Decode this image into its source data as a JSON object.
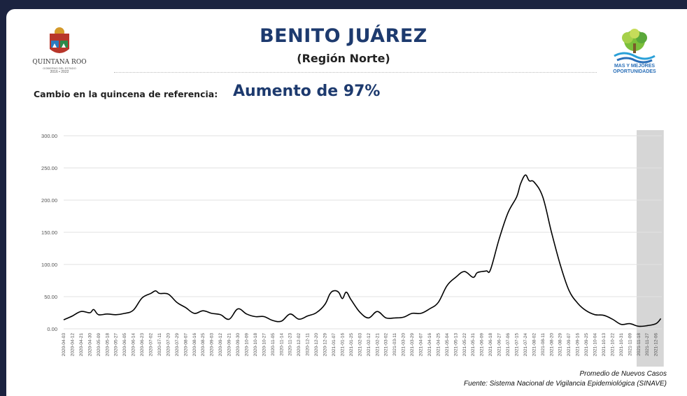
{
  "header": {
    "title": "BENITO JUÁREZ",
    "subtitle": "(Región Norte)",
    "change_label": "Cambio en la quincena de referencia:",
    "change_value": "Aumento de 97%"
  },
  "logos": {
    "left": {
      "icon": "quintana-roo-shield-icon",
      "name": "QUINTANA ROO",
      "tagline": "GOBIERNO DEL ESTADO",
      "years": "2016 • 2022"
    },
    "right": {
      "icon": "tree-logo-icon",
      "line1": "MAS Y MEJORES",
      "line2": "OPORTUNIDADES"
    }
  },
  "footer": {
    "note": "Promedio de Nuevos Casos",
    "source": "Fuente: Sistema Nacional de Vigilancia Epidemiológica (SINAVE)"
  },
  "chart_data": {
    "type": "line",
    "ylim": [
      0,
      300
    ],
    "yticks": [
      "0.00",
      "50.00",
      "100.00",
      "150.00",
      "200.00",
      "250.00",
      "300.00"
    ],
    "x_tick_labels": [
      "2020-04-03",
      "2020-04-12",
      "2020-04-21",
      "2020-04-30",
      "2020-05-09",
      "2020-05-18",
      "2020-05-27",
      "2020-06-05",
      "2020-06-14",
      "2020-06-23",
      "2020-07-02",
      "2020-07-11",
      "2020-07-20",
      "2020-07-29",
      "2020-08-07",
      "2020-08-16",
      "2020-08-25",
      "2020-09-03",
      "2020-09-12",
      "2020-09-21",
      "2020-09-30",
      "2020-10-09",
      "2020-10-18",
      "2020-10-27",
      "2020-11-05",
      "2020-11-14",
      "2020-11-23",
      "2020-12-02",
      "2020-12-11",
      "2020-12-20",
      "2020-12-29",
      "2021-01-07",
      "2021-01-16",
      "2021-01-25",
      "2021-02-03",
      "2021-02-12",
      "2021-02-21",
      "2021-03-02",
      "2021-03-11",
      "2021-03-20",
      "2021-03-29",
      "2021-04-07",
      "2021-04-16",
      "2021-04-25",
      "2021-05-04",
      "2021-05-13",
      "2021-05-22",
      "2021-05-31",
      "2021-06-09",
      "2021-06-18",
      "2021-06-27",
      "2021-07-06",
      "2021-07-15",
      "2021-07-24",
      "2021-08-02",
      "2021-08-11",
      "2021-08-20",
      "2021-08-29",
      "2021-09-07",
      "2021-09-16",
      "2021-09-25",
      "2021-10-04",
      "2021-10-13",
      "2021-10-22",
      "2021-10-31",
      "2021-11-09",
      "2021-11-18",
      "2021-11-27",
      "2021-12-06"
    ],
    "highlight_range": [
      "2021-11-16",
      "2021-12-14"
    ],
    "series": [
      {
        "color": "#000000",
        "x": [
          "2020-04-03",
          "2020-04-12",
          "2020-04-21",
          "2020-04-30",
          "2020-05-04",
          "2020-05-09",
          "2020-05-18",
          "2020-05-27",
          "2020-06-05",
          "2020-06-14",
          "2020-06-23",
          "2020-07-02",
          "2020-07-07",
          "2020-07-11",
          "2020-07-20",
          "2020-07-29",
          "2020-08-07",
          "2020-08-16",
          "2020-08-25",
          "2020-09-03",
          "2020-09-12",
          "2020-09-21",
          "2020-09-30",
          "2020-10-09",
          "2020-10-18",
          "2020-10-27",
          "2020-11-05",
          "2020-11-14",
          "2020-11-23",
          "2020-12-02",
          "2020-12-11",
          "2020-12-20",
          "2020-12-29",
          "2021-01-03",
          "2021-01-07",
          "2021-01-12",
          "2021-01-16",
          "2021-01-20",
          "2021-01-25",
          "2021-02-03",
          "2021-02-12",
          "2021-02-21",
          "2021-03-02",
          "2021-03-11",
          "2021-03-20",
          "2021-03-29",
          "2021-04-07",
          "2021-04-16",
          "2021-04-25",
          "2021-05-04",
          "2021-05-13",
          "2021-05-22",
          "2021-05-31",
          "2021-06-04",
          "2021-06-09",
          "2021-06-14",
          "2021-06-18",
          "2021-06-27",
          "2021-07-06",
          "2021-07-15",
          "2021-07-19",
          "2021-07-24",
          "2021-07-28",
          "2021-08-02",
          "2021-08-11",
          "2021-08-20",
          "2021-08-29",
          "2021-09-07",
          "2021-09-16",
          "2021-09-25",
          "2021-10-04",
          "2021-10-13",
          "2021-10-22",
          "2021-10-31",
          "2021-11-09",
          "2021-11-18",
          "2021-11-27",
          "2021-12-06",
          "2021-12-11"
        ],
        "y": [
          14,
          20,
          27,
          25,
          30,
          22,
          23,
          22,
          24,
          29,
          48,
          55,
          59,
          55,
          54,
          41,
          33,
          24,
          28,
          24,
          22,
          15,
          31,
          23,
          19,
          19,
          13,
          12,
          23,
          15,
          20,
          25,
          38,
          54,
          59,
          57,
          47,
          57,
          45,
          26,
          17,
          27,
          17,
          17,
          18,
          24,
          24,
          31,
          41,
          67,
          80,
          89,
          80,
          87,
          89,
          90,
          92,
          140,
          180,
          205,
          225,
          239,
          230,
          228,
          205,
          150,
          100,
          60,
          40,
          28,
          22,
          21,
          15,
          7,
          8,
          4,
          5,
          8,
          16
        ]
      }
    ]
  }
}
